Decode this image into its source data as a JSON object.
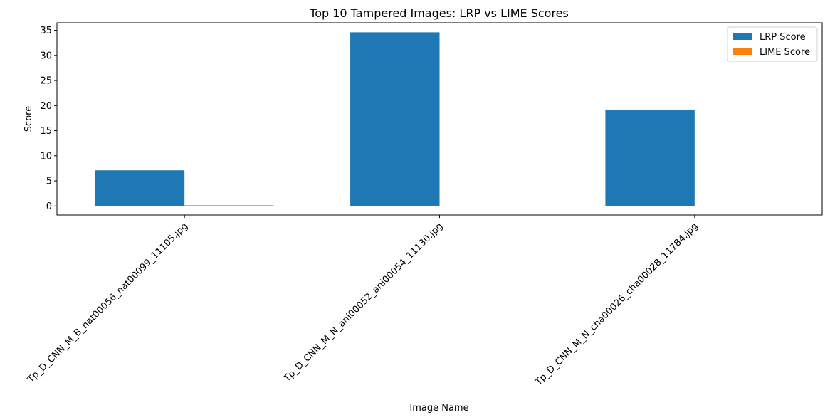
{
  "chart_data": {
    "type": "bar",
    "title": "Top 10 Tampered Images: LRP vs LIME Scores",
    "xlabel": "Image Name",
    "ylabel": "Score",
    "categories": [
      "Tp_D_CNN_M_B_nat00056_nat00099_11105.jpg",
      "Tp_D_CNN_M_N_ani00052_ani00054_11130.jpg",
      "Tp_D_CNN_M_N_cha00026_cha00028_11784.jpg"
    ],
    "series": [
      {
        "name": "LRP Score",
        "values": [
          7.1,
          34.6,
          19.2
        ],
        "color": "#1f77b4"
      },
      {
        "name": "LIME Score",
        "values": [
          0.15,
          0.0,
          0.0
        ],
        "color": "#ff7f0e"
      }
    ],
    "ylim": [
      -1.8,
      36.5
    ],
    "yticks": [
      0,
      5,
      10,
      15,
      20,
      25,
      30,
      35
    ],
    "legend_position": "top-right",
    "grid": false
  }
}
